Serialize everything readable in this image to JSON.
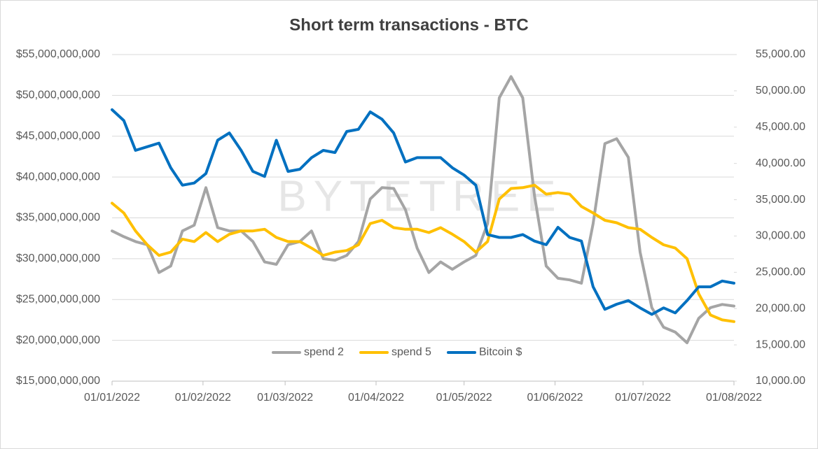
{
  "chart_data": {
    "type": "line",
    "title": "Short term transactions - BTC",
    "watermark": "BYTETREE",
    "x": [
      "01/01/2022",
      "05/01/2022",
      "09/01/2022",
      "13/01/2022",
      "17/01/2022",
      "21/01/2022",
      "25/01/2022",
      "29/01/2022",
      "02/02/2022",
      "06/02/2022",
      "10/02/2022",
      "14/02/2022",
      "18/02/2022",
      "22/02/2022",
      "26/02/2022",
      "02/03/2022",
      "06/03/2022",
      "10/03/2022",
      "14/03/2022",
      "18/03/2022",
      "22/03/2022",
      "26/03/2022",
      "30/03/2022",
      "03/04/2022",
      "07/04/2022",
      "11/04/2022",
      "15/04/2022",
      "19/04/2022",
      "23/04/2022",
      "27/04/2022",
      "01/05/2022",
      "05/05/2022",
      "09/05/2022",
      "13/05/2022",
      "17/05/2022",
      "21/05/2022",
      "25/05/2022",
      "29/05/2022",
      "02/06/2022",
      "06/06/2022",
      "10/06/2022",
      "14/06/2022",
      "18/06/2022",
      "22/06/2022",
      "26/06/2022",
      "30/06/2022",
      "04/07/2022",
      "08/07/2022",
      "12/07/2022",
      "16/07/2022",
      "20/07/2022",
      "24/07/2022",
      "28/07/2022",
      "01/08/2022"
    ],
    "xlim": [
      "01/01/2022",
      "01/08/2022"
    ],
    "xticks": [
      "01/01/2022",
      "01/02/2022",
      "01/03/2022",
      "01/04/2022",
      "01/05/2022",
      "01/06/2022",
      "01/07/2022",
      "01/08/2022"
    ],
    "ylim": [
      15000000000,
      55000000000
    ],
    "yticks": [
      {
        "value": 15000000000,
        "label": "$15,000,000,000"
      },
      {
        "value": 20000000000,
        "label": "$20,000,000,000"
      },
      {
        "value": 25000000000,
        "label": "$25,000,000,000"
      },
      {
        "value": 30000000000,
        "label": "$30,000,000,000"
      },
      {
        "value": 35000000000,
        "label": "$35,000,000,000"
      },
      {
        "value": 40000000000,
        "label": "$40,000,000,000"
      },
      {
        "value": 45000000000,
        "label": "$45,000,000,000"
      },
      {
        "value": 50000000000,
        "label": "$50,000,000,000"
      },
      {
        "value": 55000000000,
        "label": "$55,000,000,000"
      }
    ],
    "y2lim": [
      10000,
      55000
    ],
    "y2ticks": [
      {
        "value": 10000,
        "label": "10,000.00"
      },
      {
        "value": 15000,
        "label": "15,000.00"
      },
      {
        "value": 20000,
        "label": "20,000.00"
      },
      {
        "value": 25000,
        "label": "25,000.00"
      },
      {
        "value": 30000,
        "label": "30,000.00"
      },
      {
        "value": 35000,
        "label": "35,000.00"
      },
      {
        "value": 40000,
        "label": "40,000.00"
      },
      {
        "value": 45000,
        "label": "45,000.00"
      },
      {
        "value": 50000,
        "label": "50,000.00"
      },
      {
        "value": 55000,
        "label": "55,000.00"
      }
    ],
    "grid": true,
    "legend": "bottom",
    "series": [
      {
        "name": "spend 2",
        "color": "#a5a5a5",
        "values": [
          33400000000,
          32700000000,
          32100000000,
          31700000000,
          28300000000,
          29100000000,
          33400000000,
          34100000000,
          38700000000,
          33800000000,
          33400000000,
          33400000000,
          32100000000,
          29600000000,
          29300000000,
          31700000000,
          32100000000,
          33400000000,
          30000000000,
          29800000000,
          30400000000,
          32100000000,
          37300000000,
          38700000000,
          38600000000,
          36000000000,
          31300000000,
          28300000000,
          29600000000,
          28700000000,
          29600000000,
          30400000000,
          34300000000,
          49700000000,
          52300000000,
          49700000000,
          37700000000,
          29100000000,
          27600000000,
          27400000000,
          27000000000,
          34300000000,
          44100000000,
          44700000000,
          42400000000,
          30800000000,
          24000000000,
          21600000000,
          21000000000,
          19700000000,
          22700000000,
          24000000000,
          24400000000,
          24200000000
        ]
      },
      {
        "name": "spend 5",
        "color": "#ffc000",
        "values": [
          36800000000,
          35600000000,
          33400000000,
          31700000000,
          30400000000,
          30800000000,
          32400000000,
          32100000000,
          33200000000,
          32100000000,
          33000000000,
          33400000000,
          33400000000,
          33600000000,
          32600000000,
          32100000000,
          32100000000,
          31300000000,
          30400000000,
          30800000000,
          31000000000,
          31700000000,
          34300000000,
          34700000000,
          33800000000,
          33600000000,
          33600000000,
          33200000000,
          33800000000,
          33000000000,
          32100000000,
          30800000000,
          32100000000,
          37300000000,
          38600000000,
          38700000000,
          39000000000,
          37900000000,
          38100000000,
          37900000000,
          36400000000,
          35600000000,
          34700000000,
          34400000000,
          33800000000,
          33600000000,
          32600000000,
          31700000000,
          31300000000,
          30000000000,
          25700000000,
          23100000000,
          22500000000,
          22300000000
        ]
      },
      {
        "name": "Bitcoin $",
        "color": "#0070c0",
        "axis": "y2",
        "values": [
          47400,
          45900,
          41800,
          42300,
          42800,
          39400,
          37000,
          37300,
          38600,
          43200,
          44200,
          41800,
          38900,
          38200,
          43200,
          38900,
          39200,
          40800,
          41800,
          41500,
          44400,
          44700,
          47100,
          46100,
          44200,
          40200,
          40800,
          40800,
          40800,
          39400,
          38400,
          37000,
          30200,
          29800,
          29800,
          30200,
          29300,
          28800,
          31200,
          29800,
          29300,
          23000,
          19900,
          20600,
          21100,
          20100,
          19200,
          20100,
          19400,
          21100,
          23000,
          23000,
          23800,
          23500
        ]
      }
    ]
  }
}
